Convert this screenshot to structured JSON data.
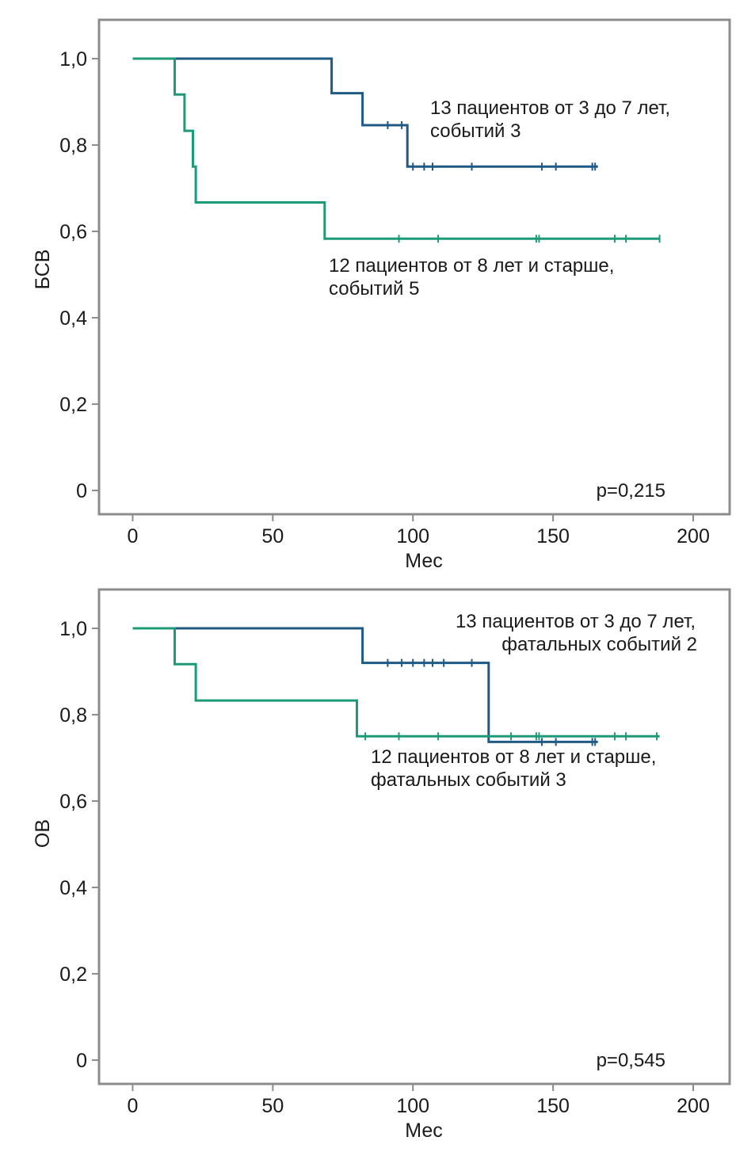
{
  "chart_data": [
    {
      "type": "line",
      "subtype": "kaplan-meier",
      "xlabel": "Мес",
      "ylabel": "БСВ",
      "xlim": [
        -12,
        213
      ],
      "ylim": [
        -0.055,
        1.09
      ],
      "xticks": [
        0,
        50,
        100,
        150,
        200
      ],
      "xtick_labels": [
        "0",
        "50",
        "100",
        "150",
        "200"
      ],
      "yticks": [
        0,
        0.2,
        0.4,
        0.6,
        0.8,
        1.0
      ],
      "ytick_labels": [
        "0",
        "0,2",
        "0,4",
        "0,6",
        "0,8",
        "1,0"
      ],
      "pvalue": "p=0,215",
      "series": [
        {
          "name": "13 пациентов от 3 до 7 лет,",
          "name2": "событий 3",
          "color": "#1f5a85",
          "steps": [
            [
              0,
              1.0
            ],
            [
              71,
              1.0
            ],
            [
              71,
              0.92
            ],
            [
              82,
              0.92
            ],
            [
              82,
              0.846
            ],
            [
              98,
              0.846
            ],
            [
              98,
              0.75
            ],
            [
              166,
              0.75
            ]
          ],
          "censored": [
            [
              91,
              0.846
            ],
            [
              96,
              0.846
            ],
            [
              100,
              0.75
            ],
            [
              104,
              0.75
            ],
            [
              107,
              0.75
            ],
            [
              121,
              0.75
            ],
            [
              146,
              0.75
            ],
            [
              151,
              0.75
            ],
            [
              164,
              0.75
            ],
            [
              165,
              0.75
            ]
          ]
        },
        {
          "name": "12 пациентов от 8 лет и старше,",
          "name2": "событий 5",
          "color": "#1d9a78",
          "steps": [
            [
              0,
              1.0
            ],
            [
              15,
              1.0
            ],
            [
              15,
              0.917
            ],
            [
              18.5,
              0.917
            ],
            [
              18.5,
              0.833
            ],
            [
              21.5,
              0.833
            ],
            [
              21.5,
              0.75
            ],
            [
              22.5,
              0.75
            ],
            [
              22.5,
              0.667
            ],
            [
              68.5,
              0.667
            ],
            [
              68.5,
              0.583
            ],
            [
              188,
              0.583
            ]
          ],
          "censored": [
            [
              95,
              0.583
            ],
            [
              109,
              0.583
            ],
            [
              144,
              0.583
            ],
            [
              145,
              0.583
            ],
            [
              172,
              0.583
            ],
            [
              176,
              0.583
            ],
            [
              188,
              0.583
            ]
          ]
        }
      ]
    },
    {
      "type": "line",
      "subtype": "kaplan-meier",
      "xlabel": "Мес",
      "ylabel": "ОВ",
      "xlim": [
        -12,
        213
      ],
      "ylim": [
        -0.055,
        1.09
      ],
      "xticks": [
        0,
        50,
        100,
        150,
        200
      ],
      "xtick_labels": [
        "0",
        "50",
        "100",
        "150",
        "200"
      ],
      "yticks": [
        0,
        0.2,
        0.4,
        0.6,
        0.8,
        1.0
      ],
      "ytick_labels": [
        "0",
        "0,2",
        "0,4",
        "0,6",
        "0,8",
        "1,0"
      ],
      "pvalue": "p=0,545",
      "series": [
        {
          "name": "13 пациентов от 3 до 7 лет,",
          "name2": "фатальных событий 2",
          "color": "#1f5a85",
          "steps": [
            [
              0,
              1.0
            ],
            [
              82,
              1.0
            ],
            [
              82,
              0.92
            ],
            [
              127,
              0.92
            ],
            [
              127,
              0.737
            ],
            [
              166,
              0.737
            ]
          ],
          "censored": [
            [
              91,
              0.92
            ],
            [
              96,
              0.92
            ],
            [
              100,
              0.92
            ],
            [
              104,
              0.92
            ],
            [
              107,
              0.92
            ],
            [
              111,
              0.92
            ],
            [
              121,
              0.92
            ],
            [
              146,
              0.737
            ],
            [
              151,
              0.737
            ],
            [
              164,
              0.737
            ],
            [
              165,
              0.737
            ]
          ]
        },
        {
          "name": "12 пациентов от 8 лет и старше,",
          "name2": "фатальных событий 3",
          "color": "#1d9a78",
          "steps": [
            [
              0,
              1.0
            ],
            [
              15,
              1.0
            ],
            [
              15,
              0.917
            ],
            [
              22.5,
              0.917
            ],
            [
              22.5,
              0.833
            ],
            [
              80,
              0.833
            ],
            [
              80,
              0.75
            ],
            [
              188,
              0.75
            ]
          ],
          "censored": [
            [
              83,
              0.75
            ],
            [
              95,
              0.75
            ],
            [
              109,
              0.75
            ],
            [
              135,
              0.75
            ],
            [
              144,
              0.75
            ],
            [
              145,
              0.75
            ],
            [
              172,
              0.75
            ],
            [
              176,
              0.75
            ],
            [
              187,
              0.75
            ]
          ]
        }
      ]
    }
  ]
}
